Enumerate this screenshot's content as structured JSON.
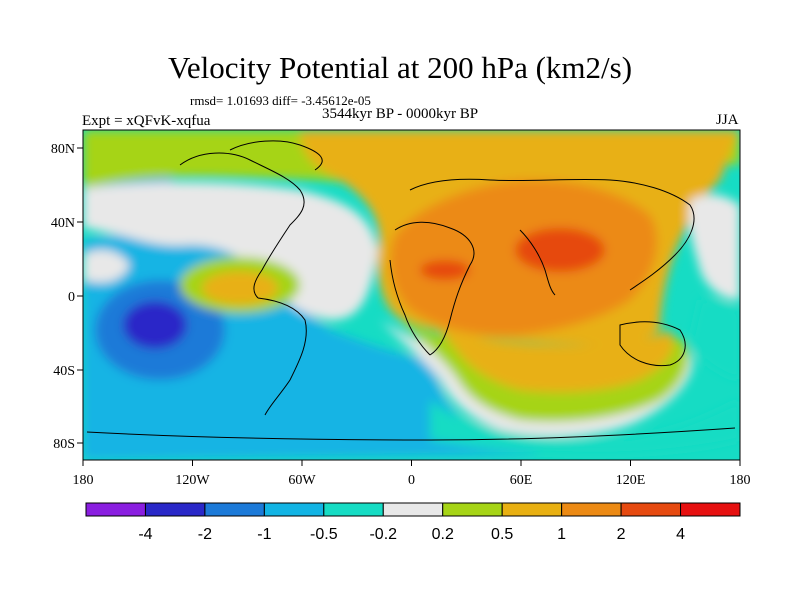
{
  "title": "Velocity Potential at 200 hPa (km2/s)",
  "stats": "rmsd= 1.01693 diff= -3.45612e-05",
  "period": "3544kyr BP - 0000kyr BP",
  "experiment": "Expt = xQFvK-xqfua",
  "season": "JJA",
  "lon_ticks": [
    "180",
    "120W",
    "60W",
    "0",
    "60E",
    "120E",
    "180"
  ],
  "lat_ticks": [
    "80N",
    "40N",
    "0",
    "40S",
    "80S"
  ],
  "colorbar": {
    "colors": [
      "#8a1ee0",
      "#2a28c8",
      "#1c7ad8",
      "#12b4e4",
      "#16dcc4",
      "#e8e8e8",
      "#a6d416",
      "#e8b012",
      "#ec8a14",
      "#e64a10",
      "#e61010"
    ],
    "labels": [
      "-4",
      "-2",
      "-1",
      "-0.5",
      "-0.2",
      "0.2",
      "0.5",
      "1",
      "2",
      "4"
    ]
  }
}
